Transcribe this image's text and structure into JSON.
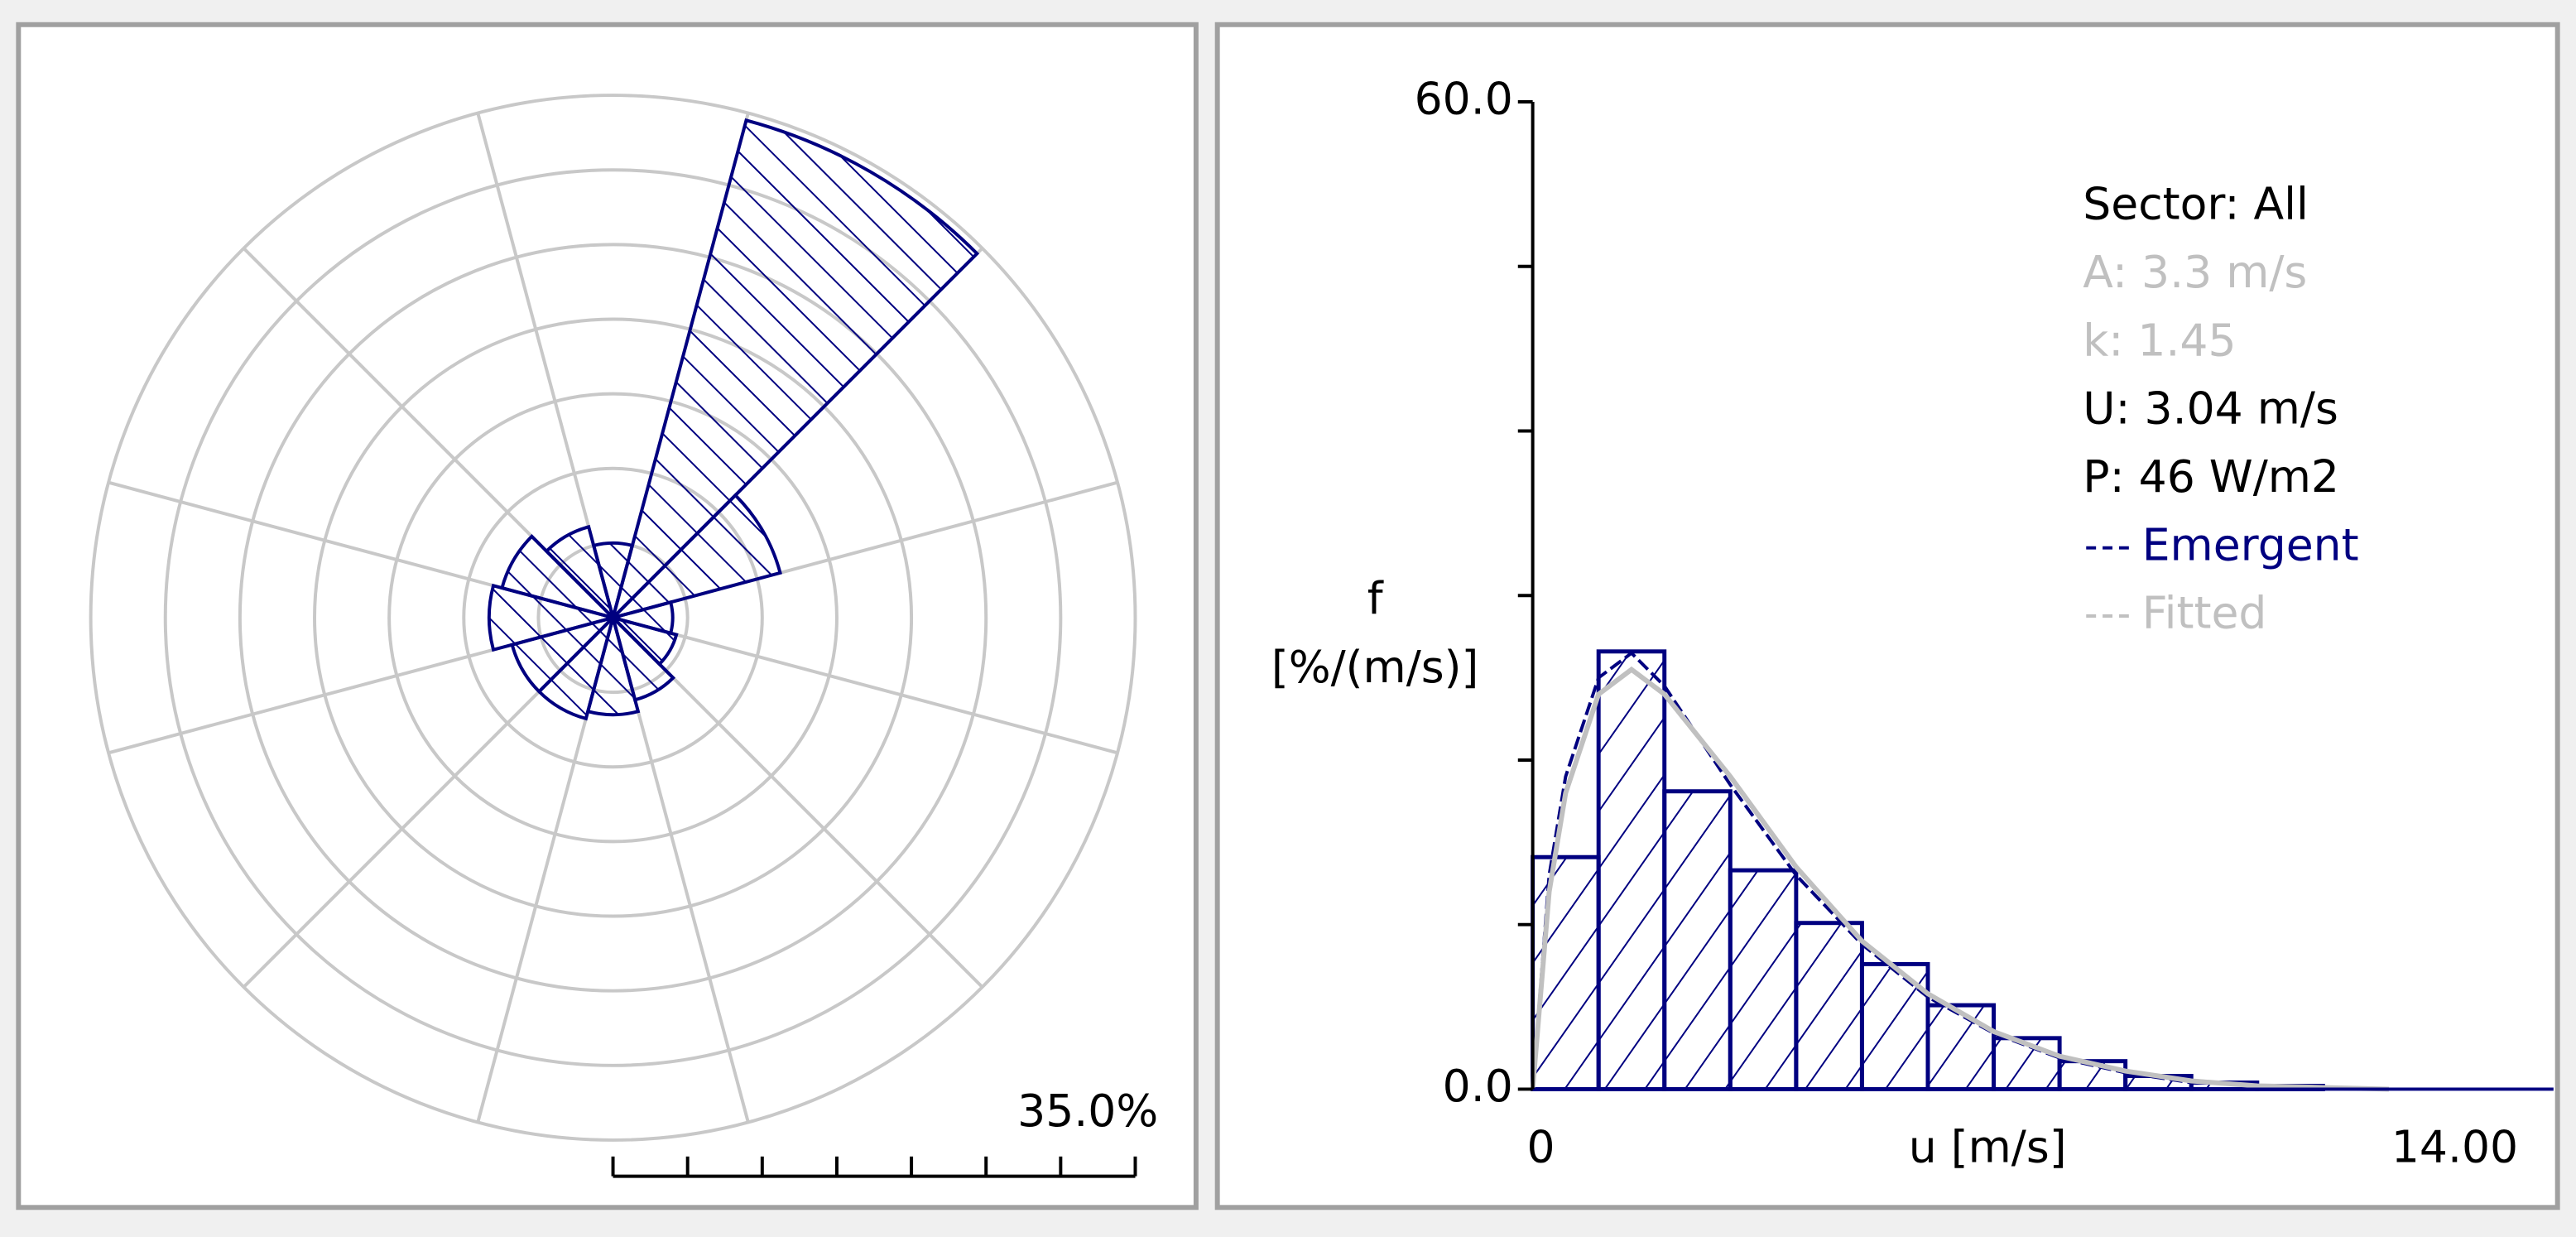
{
  "chart_data": [
    {
      "type": "windrose",
      "sectors": [
        0,
        30,
        60,
        90,
        120,
        150,
        180,
        210,
        240,
        270,
        300,
        330
      ],
      "values": [
        5.0,
        34.5,
        11.6,
        4.0,
        4.4,
        5.7,
        6.5,
        7.0,
        7.0,
        8.3,
        7.7,
        6.3
      ],
      "rlim": [
        0,
        35
      ],
      "rticks": [
        5,
        10,
        15,
        20,
        25,
        30,
        35
      ],
      "scale": {
        "value": 35,
        "label": "35.0%"
      },
      "color": "#000080",
      "grid": true
    },
    {
      "type": "histogram",
      "xlabel": "u [m/s]",
      "ylabel": [
        "f",
        "[%/(m/s)]"
      ],
      "bins": [
        0,
        1,
        2,
        3,
        4,
        5,
        6,
        7,
        8,
        9,
        10,
        11,
        12
      ],
      "values": [
        14.1,
        26.6,
        18.1,
        13.3,
        10.1,
        7.6,
        5.1,
        3.1,
        1.7,
        0.8,
        0.4,
        0.2
      ],
      "color": "#000080",
      "xlim": [
        0,
        15.5
      ],
      "ylim": [
        0,
        60
      ],
      "xticks": [
        0,
        {
          "value": 14,
          "label": "14.00"
        }
      ],
      "yticks": [
        {
          "value": 0,
          "label": "0.0"
        },
        {
          "value": 60,
          "label": "60.0"
        }
      ],
      "yminor": [
        10,
        20,
        30,
        40,
        50
      ],
      "series": [
        {
          "name": "Emergent",
          "color": "#000080",
          "x": [
            0,
            0.25,
            0.5,
            1,
            1.5,
            2,
            2.5,
            3,
            4,
            5,
            6,
            7,
            8,
            9,
            10
          ],
          "values": [
            0,
            13,
            19,
            25,
            26.5,
            24.5,
            21.5,
            18.5,
            13,
            8.8,
            5.6,
            3.4,
            1.9,
            1.0,
            0.4
          ]
        },
        {
          "name": "Fitted",
          "color": "#c0c0c0",
          "x": [
            0,
            0.25,
            0.5,
            1,
            1.5,
            2,
            2.5,
            3,
            4,
            5,
            6,
            7,
            8,
            9,
            10,
            11,
            12,
            13
          ],
          "values": [
            0,
            12,
            18,
            24,
            25.5,
            24,
            21.5,
            19,
            13.5,
            9,
            5.8,
            3.5,
            2,
            1.1,
            0.5,
            0.2,
            0.1,
            0
          ]
        }
      ],
      "info": [
        "Sector: All",
        "A: 3.3 m/s",
        "k: 1.45",
        "U: 3.04 m/s",
        "P: 46 W/m2"
      ],
      "info_colors": [
        "#000000",
        "#c0c0c0",
        "#c0c0c0",
        "#000000",
        "#000000"
      ]
    }
  ]
}
